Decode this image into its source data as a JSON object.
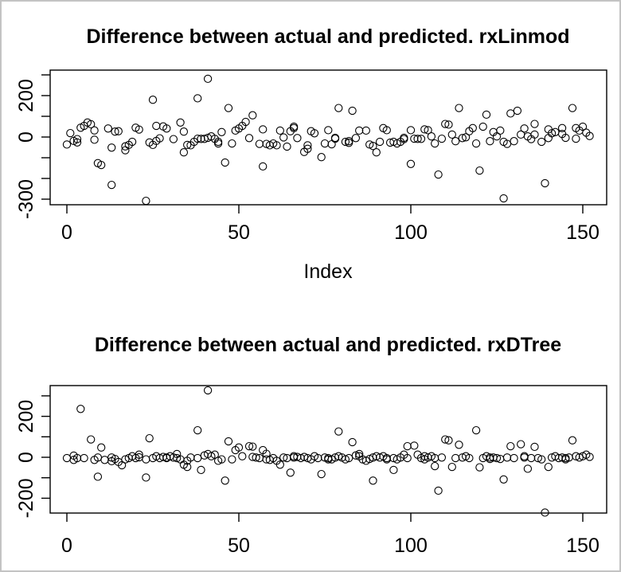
{
  "window": {
    "background": "#ffffff",
    "frame_color": "#c3c3c3",
    "axis_color": "#000000",
    "marker": "open-circle"
  },
  "chart_data": [
    {
      "type": "scatter",
      "title": "Difference between actual and predicted. rxLinmod",
      "xlabel": "Index",
      "ylabel": "",
      "xlim": [
        -5,
        157
      ],
      "ylim": [
        -325,
        325
      ],
      "grid": false,
      "legend": "none",
      "x_ticks": [
        {
          "v": 0,
          "label": "0"
        },
        {
          "v": 50,
          "label": "50"
        },
        {
          "v": 100,
          "label": "100"
        },
        {
          "v": 150,
          "label": "150"
        }
      ],
      "y_ticks": [
        {
          "v": 300,
          "label": ""
        },
        {
          "v": 200,
          "label": "200"
        },
        {
          "v": 100,
          "label": ""
        },
        {
          "v": 0,
          "label": "0"
        },
        {
          "v": -100,
          "label": ""
        },
        {
          "v": -200,
          "label": ""
        },
        {
          "v": -300,
          "label": "-300"
        }
      ],
      "points": [
        [
          0,
          -36
        ],
        [
          1,
          19
        ],
        [
          2,
          -19
        ],
        [
          3,
          -26
        ],
        [
          3,
          -10
        ],
        [
          4,
          45
        ],
        [
          5,
          54
        ],
        [
          6,
          70
        ],
        [
          7,
          62
        ],
        [
          8,
          -13
        ],
        [
          8,
          32
        ],
        [
          9,
          -126
        ],
        [
          10,
          -135
        ],
        [
          12,
          41
        ],
        [
          13,
          -231
        ],
        [
          13,
          -51
        ],
        [
          14,
          26
        ],
        [
          15,
          28
        ],
        [
          17,
          -64
        ],
        [
          17,
          -45
        ],
        [
          18,
          -38
        ],
        [
          19,
          -23
        ],
        [
          20,
          45
        ],
        [
          21,
          36
        ],
        [
          23,
          -308
        ],
        [
          24,
          -26
        ],
        [
          25,
          180
        ],
        [
          25,
          -38
        ],
        [
          26,
          54
        ],
        [
          26,
          -19
        ],
        [
          27,
          -6
        ],
        [
          28,
          51
        ],
        [
          29,
          41
        ],
        [
          31,
          -10
        ],
        [
          33,
          70
        ],
        [
          34,
          -74
        ],
        [
          34,
          26
        ],
        [
          35,
          -38
        ],
        [
          36,
          -40
        ],
        [
          37,
          -23
        ],
        [
          38,
          187
        ],
        [
          38,
          -8
        ],
        [
          39,
          -9
        ],
        [
          40,
          -9
        ],
        [
          41,
          281
        ],
        [
          41,
          -4
        ],
        [
          42,
          3
        ],
        [
          43,
          -9
        ],
        [
          44,
          -31
        ],
        [
          44,
          -23
        ],
        [
          45,
          24
        ],
        [
          46,
          -123
        ],
        [
          47,
          140
        ],
        [
          48,
          -31
        ],
        [
          49,
          31
        ],
        [
          50,
          41
        ],
        [
          51,
          54
        ],
        [
          52,
          73
        ],
        [
          53,
          -5
        ],
        [
          54,
          105
        ],
        [
          56,
          -33
        ],
        [
          57,
          37
        ],
        [
          57,
          -142
        ],
        [
          58,
          -33
        ],
        [
          59,
          -40
        ],
        [
          60,
          -31
        ],
        [
          61,
          -40
        ],
        [
          62,
          31
        ],
        [
          63,
          -2
        ],
        [
          64,
          -46
        ],
        [
          65,
          28
        ],
        [
          66,
          50
        ],
        [
          66,
          43
        ],
        [
          67,
          -5
        ],
        [
          69,
          -72
        ],
        [
          70,
          -57
        ],
        [
          70,
          -40
        ],
        [
          71,
          28
        ],
        [
          72,
          18
        ],
        [
          74,
          -97
        ],
        [
          75,
          -31
        ],
        [
          76,
          33
        ],
        [
          77,
          -35
        ],
        [
          78,
          -8
        ],
        [
          78,
          -4
        ],
        [
          79,
          140
        ],
        [
          81,
          -23
        ],
        [
          82,
          -20
        ],
        [
          82,
          -28
        ],
        [
          83,
          127
        ],
        [
          84,
          -5
        ],
        [
          85,
          31
        ],
        [
          87,
          31
        ],
        [
          88,
          -36
        ],
        [
          89,
          -43
        ],
        [
          90,
          -74
        ],
        [
          91,
          -23
        ],
        [
          92,
          43
        ],
        [
          93,
          33
        ],
        [
          94,
          -27
        ],
        [
          95,
          -23
        ],
        [
          96,
          -31
        ],
        [
          97,
          -23
        ],
        [
          98,
          -10
        ],
        [
          98,
          -4
        ],
        [
          100,
          -130
        ],
        [
          100,
          33
        ],
        [
          101,
          -8
        ],
        [
          102,
          -9
        ],
        [
          103,
          -9
        ],
        [
          104,
          37
        ],
        [
          105,
          33
        ],
        [
          106,
          3
        ],
        [
          107,
          -31
        ],
        [
          108,
          -181
        ],
        [
          109,
          -8
        ],
        [
          110,
          63
        ],
        [
          111,
          60
        ],
        [
          112,
          12
        ],
        [
          113,
          -20
        ],
        [
          114,
          140
        ],
        [
          115,
          -5
        ],
        [
          116,
          -1
        ],
        [
          117,
          28
        ],
        [
          118,
          43
        ],
        [
          119,
          -31
        ],
        [
          120,
          -162
        ],
        [
          121,
          50
        ],
        [
          122,
          108
        ],
        [
          123,
          -20
        ],
        [
          124,
          24
        ],
        [
          125,
          3
        ],
        [
          126,
          31
        ],
        [
          127,
          -296
        ],
        [
          127,
          -23
        ],
        [
          128,
          -33
        ],
        [
          129,
          114
        ],
        [
          130,
          -20
        ],
        [
          131,
          127
        ],
        [
          132,
          12
        ],
        [
          133,
          41
        ],
        [
          134,
          3
        ],
        [
          135,
          -10
        ],
        [
          136,
          63
        ],
        [
          136,
          12
        ],
        [
          138,
          -23
        ],
        [
          139,
          -223
        ],
        [
          140,
          37
        ],
        [
          140,
          -5
        ],
        [
          141,
          18
        ],
        [
          142,
          24
        ],
        [
          144,
          43
        ],
        [
          144,
          15
        ],
        [
          145,
          -4
        ],
        [
          147,
          140
        ],
        [
          148,
          43
        ],
        [
          148,
          -8
        ],
        [
          149,
          31
        ],
        [
          150,
          50
        ],
        [
          151,
          21
        ],
        [
          152,
          5
        ]
      ]
    },
    {
      "type": "scatter",
      "title": "Difference between actual and predicted. rxDTree",
      "xlabel": "",
      "ylabel": "",
      "xlim": [
        -5,
        157
      ],
      "ylim": [
        -275,
        350
      ],
      "grid": false,
      "legend": "none",
      "x_ticks": [
        {
          "v": 0,
          "label": "0"
        },
        {
          "v": 50,
          "label": "50"
        },
        {
          "v": 100,
          "label": "100"
        },
        {
          "v": 150,
          "label": "150"
        }
      ],
      "y_ticks": [
        {
          "v": 300,
          "label": ""
        },
        {
          "v": 200,
          "label": "200"
        },
        {
          "v": 100,
          "label": ""
        },
        {
          "v": 0,
          "label": "0"
        },
        {
          "v": -100,
          "label": ""
        },
        {
          "v": -200,
          "label": "-200"
        }
      ],
      "points": [
        [
          0,
          -4
        ],
        [
          2,
          8
        ],
        [
          2,
          -13
        ],
        [
          3,
          -4
        ],
        [
          4,
          236
        ],
        [
          5,
          -4
        ],
        [
          7,
          87
        ],
        [
          8,
          -13
        ],
        [
          9,
          -95
        ],
        [
          9,
          -1
        ],
        [
          10,
          48
        ],
        [
          11,
          -13
        ],
        [
          13,
          -1
        ],
        [
          13,
          -19
        ],
        [
          14,
          -8
        ],
        [
          15,
          -23
        ],
        [
          16,
          -39
        ],
        [
          17,
          -10
        ],
        [
          18,
          -4
        ],
        [
          19,
          5
        ],
        [
          20,
          -4
        ],
        [
          21,
          13
        ],
        [
          21,
          0
        ],
        [
          23,
          -99
        ],
        [
          23,
          -10
        ],
        [
          24,
          93
        ],
        [
          25,
          -4
        ],
        [
          26,
          5
        ],
        [
          27,
          -4
        ],
        [
          28,
          2
        ],
        [
          29,
          -1
        ],
        [
          29,
          -4
        ],
        [
          30,
          5
        ],
        [
          31,
          -1
        ],
        [
          32,
          16
        ],
        [
          32,
          -4
        ],
        [
          33,
          -10
        ],
        [
          34,
          -36
        ],
        [
          35,
          -47
        ],
        [
          35,
          -17
        ],
        [
          36,
          -1
        ],
        [
          38,
          132
        ],
        [
          38,
          -4
        ],
        [
          39,
          -62
        ],
        [
          40,
          9
        ],
        [
          41,
          327
        ],
        [
          41,
          16
        ],
        [
          42,
          5
        ],
        [
          43,
          13
        ],
        [
          44,
          -17
        ],
        [
          45,
          -10
        ],
        [
          46,
          -114
        ],
        [
          47,
          78
        ],
        [
          48,
          -10
        ],
        [
          49,
          35
        ],
        [
          50,
          48
        ],
        [
          51,
          5
        ],
        [
          53,
          54
        ],
        [
          54,
          52
        ],
        [
          54,
          2
        ],
        [
          55,
          -1
        ],
        [
          56,
          -4
        ],
        [
          57,
          35
        ],
        [
          58,
          17
        ],
        [
          58,
          -10
        ],
        [
          59,
          -13
        ],
        [
          60,
          -4
        ],
        [
          61,
          -17
        ],
        [
          62,
          -36
        ],
        [
          63,
          -1
        ],
        [
          64,
          -4
        ],
        [
          65,
          -75
        ],
        [
          66,
          5
        ],
        [
          66,
          -1
        ],
        [
          67,
          2
        ],
        [
          68,
          -4
        ],
        [
          69,
          2
        ],
        [
          70,
          -4
        ],
        [
          71,
          -10
        ],
        [
          72,
          5
        ],
        [
          73,
          -4
        ],
        [
          74,
          -82
        ],
        [
          75,
          -1
        ],
        [
          76,
          -4
        ],
        [
          76,
          -10
        ],
        [
          77,
          -10
        ],
        [
          78,
          -1
        ],
        [
          79,
          126
        ],
        [
          79,
          5
        ],
        [
          80,
          -1
        ],
        [
          81,
          -10
        ],
        [
          82,
          -4
        ],
        [
          83,
          74
        ],
        [
          84,
          9
        ],
        [
          85,
          16
        ],
        [
          85,
          5
        ],
        [
          86,
          -10
        ],
        [
          87,
          -17
        ],
        [
          88,
          -8
        ],
        [
          89,
          -114
        ],
        [
          89,
          -1
        ],
        [
          90,
          5
        ],
        [
          91,
          -1
        ],
        [
          92,
          5
        ],
        [
          93,
          -4
        ],
        [
          93,
          -10
        ],
        [
          95,
          -62
        ],
        [
          95,
          -4
        ],
        [
          96,
          -10
        ],
        [
          97,
          -1
        ],
        [
          98,
          13
        ],
        [
          99,
          54
        ],
        [
          99,
          -4
        ],
        [
          101,
          57
        ],
        [
          102,
          13
        ],
        [
          103,
          -4
        ],
        [
          104,
          5
        ],
        [
          104,
          -10
        ],
        [
          105,
          -1
        ],
        [
          106,
          5
        ],
        [
          107,
          -43
        ],
        [
          107,
          -4
        ],
        [
          108,
          -163
        ],
        [
          109,
          -1
        ],
        [
          110,
          87
        ],
        [
          111,
          83
        ],
        [
          112,
          -47
        ],
        [
          113,
          -4
        ],
        [
          114,
          61
        ],
        [
          115,
          -1
        ],
        [
          116,
          5
        ],
        [
          117,
          -4
        ],
        [
          119,
          132
        ],
        [
          120,
          -49
        ],
        [
          121,
          -4
        ],
        [
          122,
          5
        ],
        [
          123,
          -8
        ],
        [
          123,
          -1
        ],
        [
          124,
          -1
        ],
        [
          125,
          -4
        ],
        [
          126,
          -8
        ],
        [
          127,
          -108
        ],
        [
          128,
          -1
        ],
        [
          129,
          54
        ],
        [
          130,
          -4
        ],
        [
          132,
          64
        ],
        [
          133,
          5
        ],
        [
          133,
          -1
        ],
        [
          134,
          -56
        ],
        [
          135,
          -4
        ],
        [
          136,
          51
        ],
        [
          137,
          -4
        ],
        [
          138,
          -10
        ],
        [
          139,
          -270
        ],
        [
          140,
          -47
        ],
        [
          141,
          -1
        ],
        [
          142,
          5
        ],
        [
          143,
          -4
        ],
        [
          144,
          -1
        ],
        [
          145,
          -10
        ],
        [
          145,
          -4
        ],
        [
          146,
          -1
        ],
        [
          147,
          83
        ],
        [
          148,
          5
        ],
        [
          149,
          -1
        ],
        [
          150,
          5
        ],
        [
          151,
          13
        ],
        [
          152,
          2
        ]
      ]
    }
  ]
}
